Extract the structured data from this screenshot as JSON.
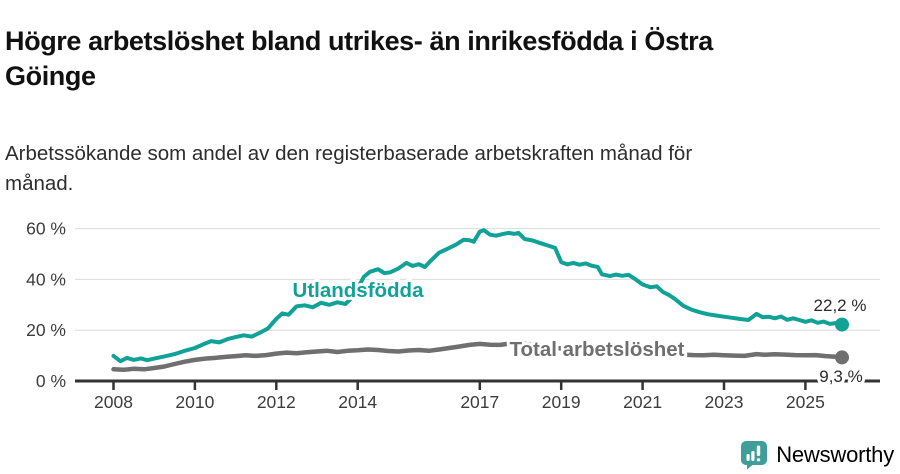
{
  "title": {
    "lines": [
      "Högre arbetslöshet bland utrikes- än inrikesfödda i Östra",
      "Göinge"
    ]
  },
  "subtitle": {
    "lines": [
      "Arbetssökande som andel av den registerbaserade arbetskraften månad för",
      "månad."
    ]
  },
  "colors": {
    "foreign_born_line": "#10a296",
    "total_line": "#6f6f6f",
    "axis": "#333333",
    "gridline": "#dcdcdc",
    "end_label_text": "#2b2b2b",
    "brand_teal": "#3f9e9a"
  },
  "chart_data": {
    "type": "line",
    "title": "Högre arbetslöshet bland utrikes- än inrikesfödda i Östra Göinge",
    "subtitle": "Arbetssökande som andel av den registerbaserade arbetskraften månad för månad.",
    "xlabel": "",
    "ylabel": "",
    "grid": "horizontal",
    "legend_position": "inline-labels",
    "x_range": [
      2007.2,
      2026.8
    ],
    "ylim": [
      0,
      62
    ],
    "y_axis": {
      "ticks": [
        {
          "value": 0,
          "label": "0 %"
        },
        {
          "value": 20,
          "label": "20 %"
        },
        {
          "value": 40,
          "label": "40 %"
        },
        {
          "value": 60,
          "label": "60 %"
        }
      ]
    },
    "x_axis": {
      "ticks": [
        {
          "value": 2008,
          "label": "2008"
        },
        {
          "value": 2010,
          "label": "2010"
        },
        {
          "value": 2012,
          "label": "2012"
        },
        {
          "value": 2014,
          "label": "2014"
        },
        {
          "value": 2017,
          "label": "2017"
        },
        {
          "value": 2019,
          "label": "2019"
        },
        {
          "value": 2021,
          "label": "2021"
        },
        {
          "value": 2023,
          "label": "2023"
        },
        {
          "value": 2025,
          "label": "2025"
        }
      ]
    },
    "series": [
      {
        "name": "Utlandsfödda",
        "color": "#10a296",
        "stroke_width": 4,
        "end_label": "22,2 %",
        "end_value": 22.2,
        "points": [
          [
            2008.0,
            9.9
          ],
          [
            2008.17,
            7.8
          ],
          [
            2008.33,
            9.1
          ],
          [
            2008.5,
            8.3
          ],
          [
            2008.67,
            8.9
          ],
          [
            2008.83,
            8.2
          ],
          [
            2009.0,
            8.8
          ],
          [
            2009.25,
            9.7
          ],
          [
            2009.5,
            10.6
          ],
          [
            2009.75,
            11.9
          ],
          [
            2010.0,
            13.0
          ],
          [
            2010.2,
            14.4
          ],
          [
            2010.4,
            15.7
          ],
          [
            2010.6,
            15.2
          ],
          [
            2010.8,
            16.5
          ],
          [
            2011.0,
            17.3
          ],
          [
            2011.2,
            18.0
          ],
          [
            2011.4,
            17.5
          ],
          [
            2011.6,
            19.0
          ],
          [
            2011.8,
            20.8
          ],
          [
            2012.0,
            24.5
          ],
          [
            2012.15,
            26.6
          ],
          [
            2012.3,
            26.1
          ],
          [
            2012.5,
            29.4
          ],
          [
            2012.7,
            29.8
          ],
          [
            2012.9,
            29.0
          ],
          [
            2013.1,
            30.8
          ],
          [
            2013.3,
            30.0
          ],
          [
            2013.5,
            31.0
          ],
          [
            2013.7,
            30.3
          ],
          [
            2013.9,
            33.5
          ],
          [
            2014.0,
            36.5
          ],
          [
            2014.15,
            41.0
          ],
          [
            2014.3,
            43.0
          ],
          [
            2014.5,
            44.0
          ],
          [
            2014.65,
            42.5
          ],
          [
            2014.8,
            42.8
          ],
          [
            2015.0,
            44.3
          ],
          [
            2015.2,
            46.5
          ],
          [
            2015.35,
            45.3
          ],
          [
            2015.5,
            46.0
          ],
          [
            2015.65,
            44.9
          ],
          [
            2015.8,
            47.5
          ],
          [
            2016.0,
            50.5
          ],
          [
            2016.2,
            52.0
          ],
          [
            2016.4,
            53.6
          ],
          [
            2016.6,
            55.6
          ],
          [
            2016.75,
            55.4
          ],
          [
            2016.85,
            54.8
          ],
          [
            2017.0,
            58.8
          ],
          [
            2017.1,
            59.4
          ],
          [
            2017.25,
            57.6
          ],
          [
            2017.4,
            57.2
          ],
          [
            2017.55,
            57.8
          ],
          [
            2017.7,
            58.3
          ],
          [
            2017.85,
            57.9
          ],
          [
            2017.95,
            58.3
          ],
          [
            2018.1,
            55.9
          ],
          [
            2018.3,
            55.3
          ],
          [
            2018.5,
            54.2
          ],
          [
            2018.7,
            53.2
          ],
          [
            2018.85,
            52.4
          ],
          [
            2019.0,
            46.8
          ],
          [
            2019.15,
            45.9
          ],
          [
            2019.3,
            46.5
          ],
          [
            2019.45,
            45.8
          ],
          [
            2019.6,
            46.3
          ],
          [
            2019.75,
            45.4
          ],
          [
            2019.9,
            44.9
          ],
          [
            2020.0,
            42.0
          ],
          [
            2020.2,
            41.3
          ],
          [
            2020.35,
            41.9
          ],
          [
            2020.5,
            41.4
          ],
          [
            2020.65,
            41.8
          ],
          [
            2020.8,
            40.3
          ],
          [
            2021.0,
            38.0
          ],
          [
            2021.2,
            36.9
          ],
          [
            2021.35,
            37.3
          ],
          [
            2021.5,
            35.0
          ],
          [
            2021.65,
            33.8
          ],
          [
            2021.8,
            32.2
          ],
          [
            2022.0,
            29.6
          ],
          [
            2022.2,
            28.1
          ],
          [
            2022.4,
            27.1
          ],
          [
            2022.6,
            26.3
          ],
          [
            2022.8,
            25.8
          ],
          [
            2023.0,
            25.3
          ],
          [
            2023.2,
            24.9
          ],
          [
            2023.4,
            24.4
          ],
          [
            2023.6,
            24.0
          ],
          [
            2023.8,
            26.4
          ],
          [
            2023.95,
            25.1
          ],
          [
            2024.1,
            25.3
          ],
          [
            2024.25,
            24.7
          ],
          [
            2024.4,
            25.4
          ],
          [
            2024.55,
            24.1
          ],
          [
            2024.7,
            24.7
          ],
          [
            2024.85,
            24.0
          ],
          [
            2025.0,
            23.3
          ],
          [
            2025.15,
            23.9
          ],
          [
            2025.3,
            22.9
          ],
          [
            2025.45,
            23.4
          ],
          [
            2025.6,
            22.5
          ],
          [
            2025.75,
            22.8
          ],
          [
            2025.9,
            22.2
          ]
        ]
      },
      {
        "name": "Total arbetslöshet",
        "color": "#6f6f6f",
        "stroke_width": 4.5,
        "end_label": "9,3 %",
        "end_value": 9.3,
        "points": [
          [
            2008.0,
            4.6
          ],
          [
            2008.25,
            4.4
          ],
          [
            2008.5,
            4.8
          ],
          [
            2008.75,
            4.6
          ],
          [
            2009.0,
            5.1
          ],
          [
            2009.25,
            5.7
          ],
          [
            2009.5,
            6.7
          ],
          [
            2009.75,
            7.6
          ],
          [
            2010.0,
            8.3
          ],
          [
            2010.25,
            8.8
          ],
          [
            2010.5,
            9.1
          ],
          [
            2010.75,
            9.5
          ],
          [
            2011.0,
            9.8
          ],
          [
            2011.25,
            10.1
          ],
          [
            2011.5,
            9.9
          ],
          [
            2011.75,
            10.2
          ],
          [
            2012.0,
            10.8
          ],
          [
            2012.25,
            11.2
          ],
          [
            2012.5,
            10.9
          ],
          [
            2012.75,
            11.3
          ],
          [
            2013.0,
            11.6
          ],
          [
            2013.25,
            11.9
          ],
          [
            2013.5,
            11.4
          ],
          [
            2013.75,
            11.9
          ],
          [
            2014.0,
            12.1
          ],
          [
            2014.25,
            12.4
          ],
          [
            2014.5,
            12.2
          ],
          [
            2014.75,
            11.8
          ],
          [
            2015.0,
            11.6
          ],
          [
            2015.25,
            12.0
          ],
          [
            2015.5,
            12.2
          ],
          [
            2015.75,
            11.9
          ],
          [
            2016.0,
            12.4
          ],
          [
            2016.25,
            13.0
          ],
          [
            2016.5,
            13.6
          ],
          [
            2016.75,
            14.2
          ],
          [
            2017.0,
            14.6
          ],
          [
            2017.25,
            14.3
          ],
          [
            2017.5,
            14.2
          ],
          [
            2017.75,
            14.8
          ],
          [
            2018.0,
            14.9
          ],
          [
            2018.35,
            14.1
          ],
          [
            2018.7,
            13.4
          ],
          [
            2019.0,
            12.8
          ],
          [
            2019.35,
            12.3
          ],
          [
            2019.7,
            12.0
          ],
          [
            2020.0,
            12.4
          ],
          [
            2020.35,
            12.1
          ],
          [
            2020.7,
            11.7
          ],
          [
            2021.0,
            11.2
          ],
          [
            2021.3,
            10.7
          ],
          [
            2021.6,
            10.6
          ],
          [
            2021.8,
            10.5
          ],
          [
            2022.0,
            10.4
          ],
          [
            2022.25,
            10.2
          ],
          [
            2022.5,
            10.1
          ],
          [
            2022.75,
            10.3
          ],
          [
            2023.0,
            10.1
          ],
          [
            2023.25,
            10.0
          ],
          [
            2023.5,
            9.9
          ],
          [
            2023.8,
            10.6
          ],
          [
            2024.0,
            10.3
          ],
          [
            2024.25,
            10.5
          ],
          [
            2024.5,
            10.4
          ],
          [
            2024.75,
            10.2
          ],
          [
            2025.0,
            10.1
          ],
          [
            2025.25,
            10.2
          ],
          [
            2025.5,
            9.8
          ],
          [
            2025.7,
            9.6
          ],
          [
            2025.9,
            9.3
          ]
        ]
      }
    ]
  },
  "footer": {
    "brand": "Newsworthy"
  }
}
